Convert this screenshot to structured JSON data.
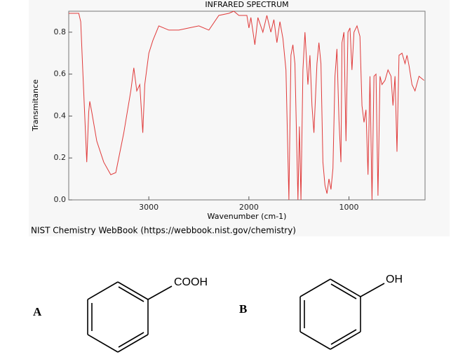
{
  "chart_data": {
    "type": "line",
    "title": "INFRARED SPECTRUM",
    "x_label": "Wavenumber (cm-1)",
    "y_label": "Transmitance",
    "color": "#e03a3a",
    "xlim": [
      3800,
      240
    ],
    "ylim": [
      0,
      0.9
    ],
    "xticks": [
      3000,
      2000,
      1000
    ],
    "yticks": [
      {
        "value": 0,
        "label": "0.0"
      },
      0.2,
      0.4,
      0.6,
      0.8
    ],
    "x": [
      3800,
      3700,
      3680,
      3660,
      3620,
      3600,
      3590,
      3570,
      3520,
      3450,
      3380,
      3330,
      3250,
      3180,
      3150,
      3120,
      3090,
      3060,
      3040,
      3000,
      2960,
      2900,
      2800,
      2700,
      2600,
      2500,
      2400,
      2300,
      2200,
      2150,
      2100,
      2020,
      2000,
      1980,
      1940,
      1910,
      1860,
      1820,
      1780,
      1750,
      1720,
      1690,
      1660,
      1630,
      1600,
      1580,
      1560,
      1540,
      1510,
      1495,
      1480,
      1460,
      1440,
      1410,
      1390,
      1370,
      1350,
      1320,
      1300,
      1280,
      1260,
      1240,
      1220,
      1200,
      1180,
      1160,
      1140,
      1120,
      1100,
      1080,
      1070,
      1050,
      1030,
      1010,
      990,
      970,
      950,
      920,
      890,
      870,
      850,
      830,
      810,
      790,
      770,
      750,
      730,
      710,
      690,
      670,
      640,
      610,
      580,
      560,
      540,
      520,
      500,
      470,
      440,
      420,
      400,
      370,
      340,
      300,
      250
    ],
    "values": [
      0.89,
      0.89,
      0.85,
      0.62,
      0.18,
      0.42,
      0.47,
      0.42,
      0.28,
      0.18,
      0.12,
      0.13,
      0.32,
      0.52,
      0.63,
      0.52,
      0.55,
      0.32,
      0.55,
      0.7,
      0.76,
      0.83,
      0.81,
      0.81,
      0.82,
      0.83,
      0.81,
      0.88,
      0.89,
      0.9,
      0.88,
      0.88,
      0.82,
      0.87,
      0.74,
      0.87,
      0.8,
      0.88,
      0.8,
      0.86,
      0.75,
      0.85,
      0.77,
      0.62,
      0.0,
      0.69,
      0.74,
      0.65,
      0.0,
      0.35,
      0.0,
      0.62,
      0.8,
      0.55,
      0.69,
      0.45,
      0.32,
      0.65,
      0.75,
      0.65,
      0.18,
      0.07,
      0.03,
      0.1,
      0.05,
      0.15,
      0.59,
      0.72,
      0.38,
      0.18,
      0.75,
      0.8,
      0.28,
      0.8,
      0.82,
      0.62,
      0.8,
      0.83,
      0.78,
      0.45,
      0.37,
      0.43,
      0.12,
      0.59,
      0.0,
      0.59,
      0.6,
      0.02,
      0.59,
      0.55,
      0.57,
      0.62,
      0.59,
      0.45,
      0.59,
      0.23,
      0.69,
      0.7,
      0.65,
      0.69,
      0.64,
      0.55,
      0.52,
      0.59,
      0.57
    ]
  },
  "source": "NIST Chemistry WebBook (https://webbook.nist.gov/chemistry)",
  "structures": [
    {
      "label": "A",
      "substituent": "COOH"
    },
    {
      "label": "B",
      "substituent": "OH"
    }
  ]
}
